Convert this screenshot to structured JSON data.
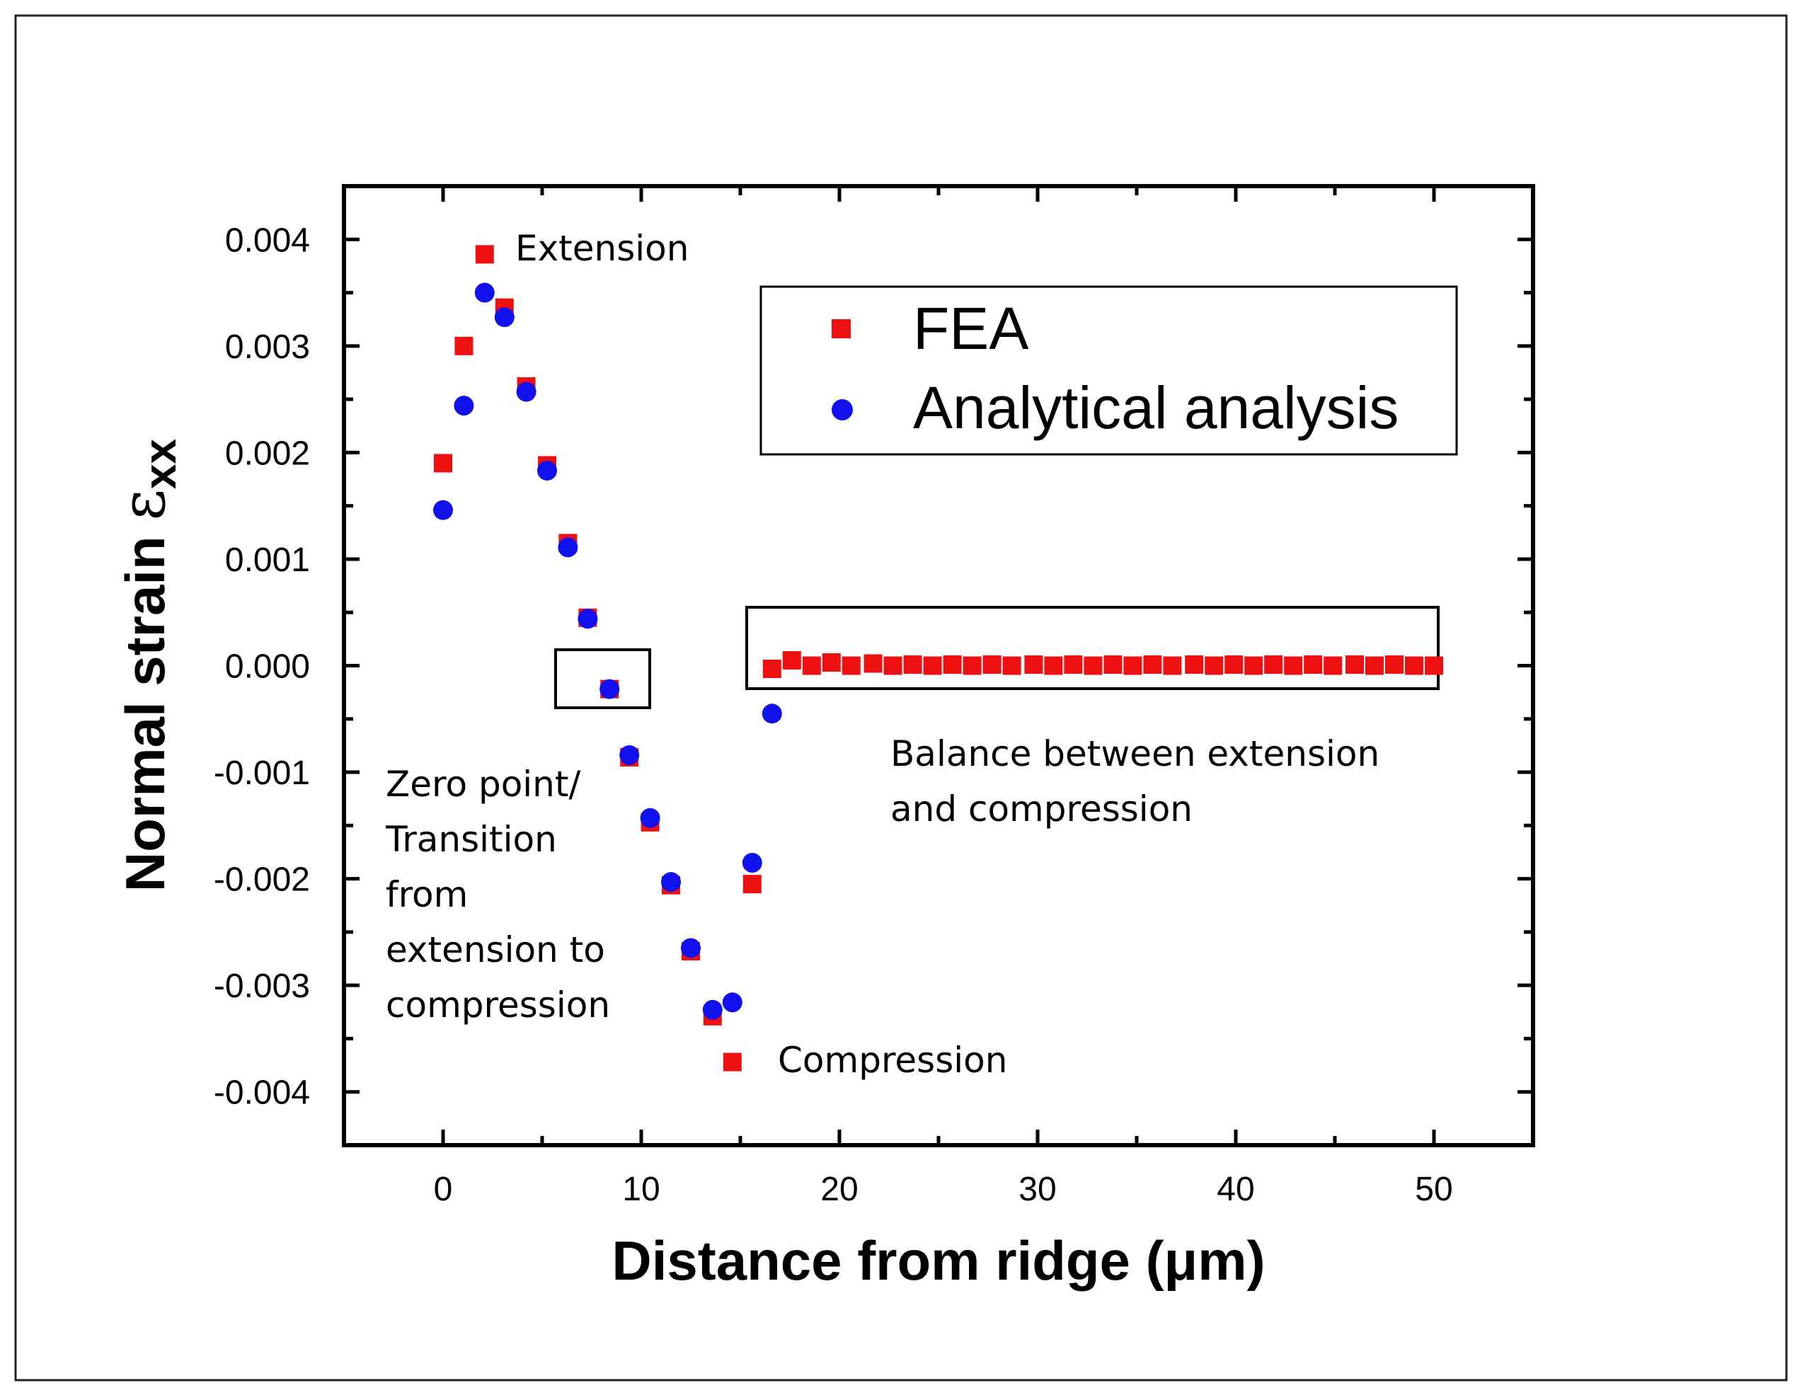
{
  "chart_data": {
    "type": "scatter",
    "title": "",
    "xlabel": "Distance from ridge (μm)",
    "ylabel_prefix": "Normal strain ",
    "ylabel_symbol": "ε",
    "ylabel_subscript": "xx",
    "xlim": [
      -5,
      55
    ],
    "ylim": [
      -0.0045,
      0.0045
    ],
    "x_ticks": [
      0,
      10,
      20,
      30,
      40,
      50
    ],
    "x_tick_labels": [
      "0",
      "10",
      "20",
      "30",
      "40",
      "50"
    ],
    "y_ticks": [
      0.004,
      0.003,
      0.002,
      0.001,
      0.0,
      -0.001,
      -0.002,
      -0.003,
      -0.004
    ],
    "y_tick_labels": [
      "0.004",
      "0.003",
      "0.002",
      "0.001",
      "0.000",
      "-0.001",
      "-0.002",
      "-0.003",
      "-0.004"
    ],
    "grid": false,
    "legend_position": "top-right",
    "series": [
      {
        "name": "FEA",
        "marker": "square",
        "color": "#ee1111",
        "x": [
          0,
          1.05,
          2.1,
          3.1,
          4.2,
          5.25,
          6.3,
          7.3,
          8.4,
          9.4,
          10.45,
          11.5,
          12.5,
          13.6,
          14.6,
          15.6,
          16.6,
          17.6,
          18.6,
          19.6,
          20.6,
          21.7,
          22.7,
          23.7,
          24.7,
          25.7,
          26.7,
          27.7,
          28.7,
          29.8,
          30.8,
          31.8,
          32.8,
          33.8,
          34.8,
          35.8,
          36.8,
          37.9,
          38.9,
          39.9,
          40.9,
          41.9,
          42.9,
          43.9,
          44.9,
          46.0,
          47.0,
          48.0,
          49.0,
          50.0
        ],
        "y": [
          0.0019,
          0.003,
          0.00386,
          0.00336,
          0.00262,
          0.00188,
          0.00115,
          0.00045,
          -0.00022,
          -0.00086,
          -0.00147,
          -0.00206,
          -0.00268,
          -0.00329,
          -0.00372,
          -0.00205,
          -3e-05,
          5e-05,
          0.0,
          3e-05,
          0.0,
          2e-05,
          0.0,
          1e-05,
          0.0,
          1e-05,
          0.0,
          1e-05,
          0.0,
          1e-05,
          0.0,
          1e-05,
          0.0,
          1e-05,
          0.0,
          1e-05,
          0.0,
          1e-05,
          0.0,
          1e-05,
          0.0,
          1e-05,
          0.0,
          1e-05,
          0.0,
          1e-05,
          0.0,
          1e-05,
          0.0,
          0.0
        ]
      },
      {
        "name": "Analytical analysis",
        "marker": "circle",
        "color": "#1111ee",
        "x": [
          0,
          1.05,
          2.1,
          3.1,
          4.2,
          5.25,
          6.3,
          7.3,
          8.4,
          9.4,
          10.45,
          11.5,
          12.5,
          13.6,
          14.6,
          15.6,
          16.6
        ],
        "y": [
          0.00146,
          0.00244,
          0.0035,
          0.00327,
          0.00257,
          0.00183,
          0.00111,
          0.00044,
          -0.00022,
          -0.00084,
          -0.00143,
          -0.00203,
          -0.00265,
          -0.00323,
          -0.00316,
          -0.00185,
          -0.00045
        ]
      }
    ],
    "annotations": [
      {
        "id": "extension",
        "lines": [
          "Extension"
        ]
      },
      {
        "id": "compression",
        "lines": [
          "Compression"
        ]
      },
      {
        "id": "zero-point",
        "lines": [
          "Zero point/",
          "Transition",
          "from",
          "extension to",
          "compression"
        ]
      },
      {
        "id": "balance",
        "lines": [
          "Balance between extension",
          "and compression"
        ]
      }
    ]
  }
}
